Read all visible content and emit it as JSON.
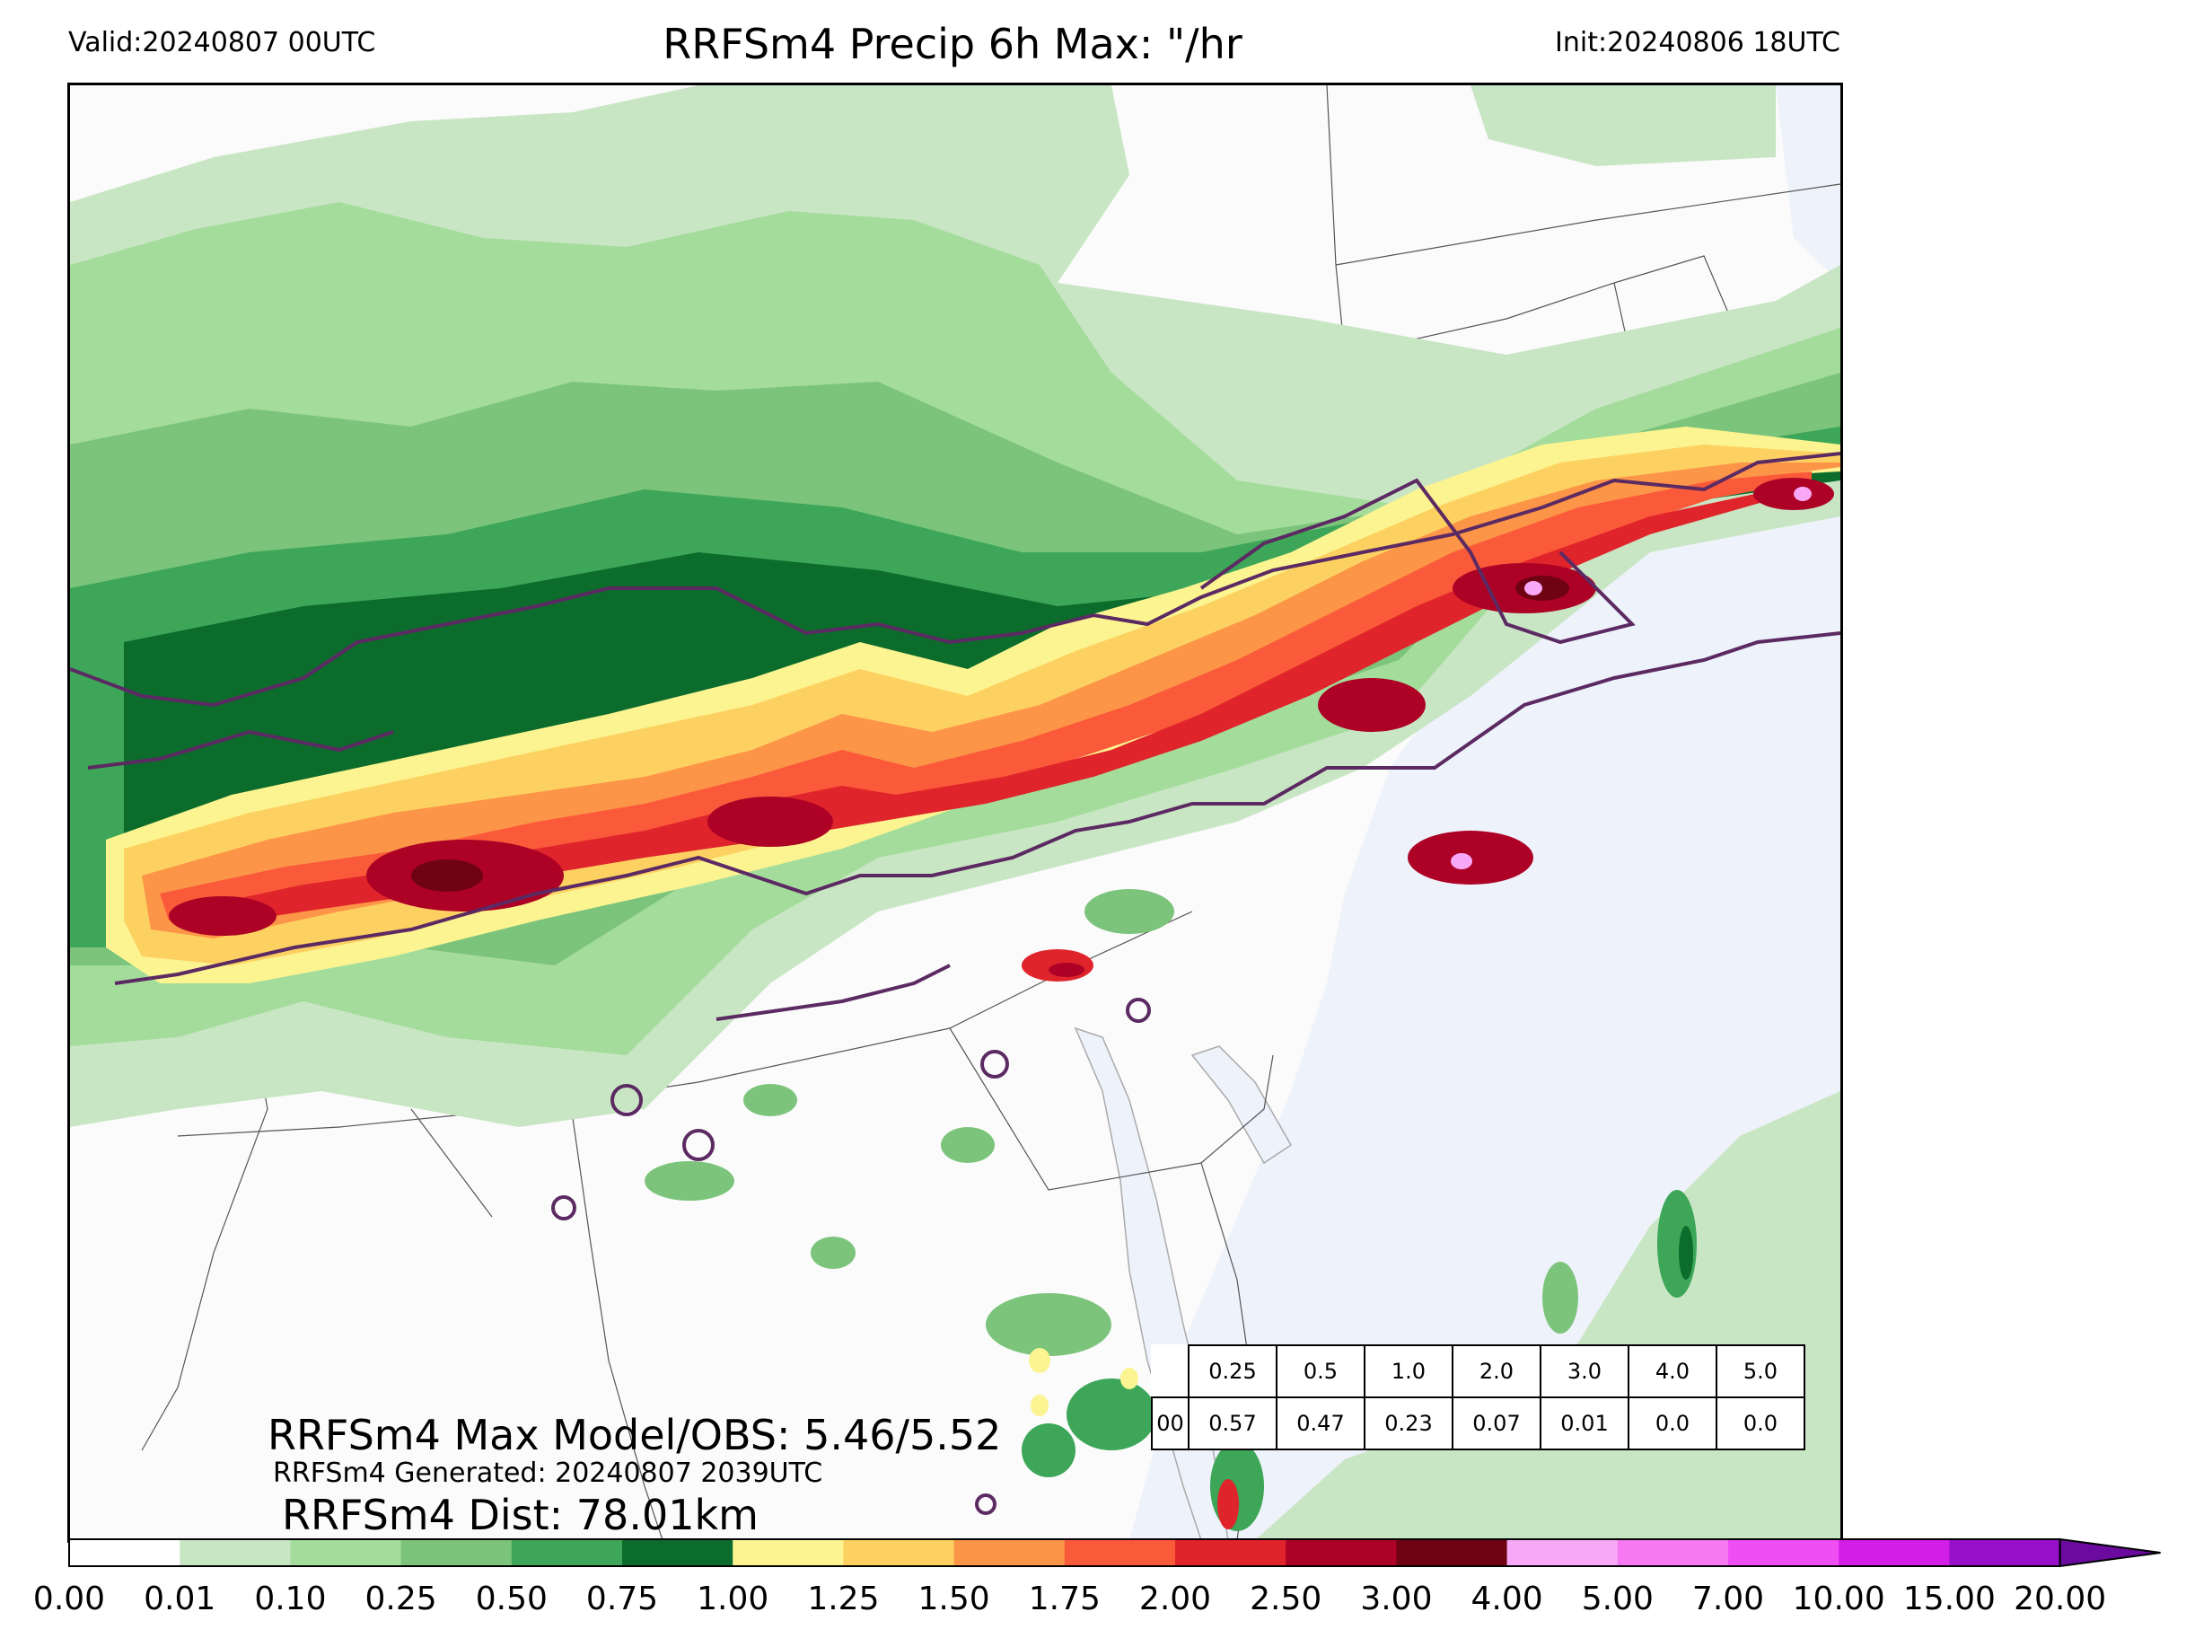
{
  "header": {
    "valid": "Valid:20240807 00UTC",
    "title": "RRFSm4 Precip 6h Max: \"/hr",
    "init": "Init:20240806 18UTC"
  },
  "stats": {
    "max_model_obs": "RRFSm4 Max Model/OBS: 5.46/5.52",
    "generated": "RRFSm4 Generated: 20240807 2039UTC",
    "dist": "RRFSm4 Dist: 78.01km"
  },
  "threshold_table": {
    "thresholds": [
      "0.25",
      "0.5",
      "1.0",
      "2.0",
      "3.0",
      "4.0",
      "5.0"
    ],
    "values": [
      "00",
      "0.57",
      "0.47",
      "0.23",
      "0.07",
      "0.01",
      "0.0",
      "0.0"
    ]
  },
  "colorbar": {
    "ticks": [
      "0.00",
      "0.01",
      "0.10",
      "0.25",
      "0.50",
      "0.75",
      "1.00",
      "1.25",
      "1.50",
      "1.75",
      "2.00",
      "2.50",
      "3.00",
      "4.00",
      "5.00",
      "7.00",
      "10.00",
      "15.00",
      "20.00"
    ],
    "colors": [
      "#ffffff",
      "#c9e6c4",
      "#a4dc9c",
      "#7cc47b",
      "#3da658",
      "#0c6c2c",
      "#fbf491",
      "#fdd161",
      "#fc9548",
      "#fb5a3a",
      "#e0242b",
      "#ad0226",
      "#6f0314",
      "#f8a8f6",
      "#f579f0",
      "#f04ef5",
      "#d21ee6",
      "#9810c9"
    ]
  },
  "colors": {
    "ocean": "#eef2fa",
    "land": "#fbfbfb",
    "obs_contour": "#5c2a62"
  }
}
